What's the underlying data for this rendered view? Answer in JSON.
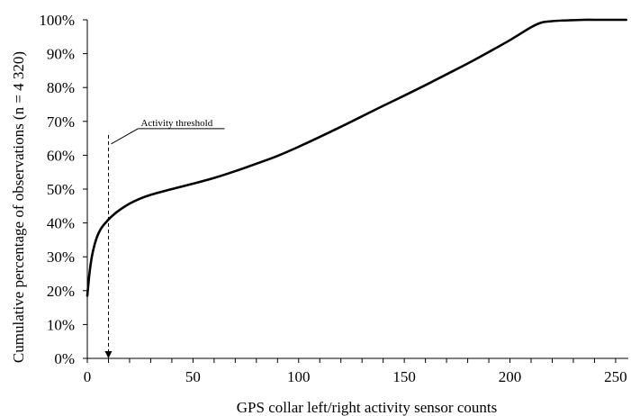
{
  "chart_data": {
    "type": "line",
    "xlabel": "GPS collar left/right activity sensor counts",
    "ylabel": "Cumulative percentage of observations (n = 4 320)",
    "xlim": [
      0,
      256
    ],
    "ylim": [
      0,
      100
    ],
    "x_ticks": [
      0,
      50,
      100,
      150,
      200,
      250
    ],
    "x_tick_labels": [
      "0",
      "50",
      "100",
      "150",
      "200",
      "250"
    ],
    "y_ticks": [
      0,
      10,
      20,
      30,
      40,
      50,
      60,
      70,
      80,
      90,
      100
    ],
    "y_tick_labels": [
      "0%",
      "10%",
      "20%",
      "30%",
      "40%",
      "50%",
      "60%",
      "70%",
      "80%",
      "90%",
      "100%"
    ],
    "grid": false,
    "legend": "none",
    "series": [
      {
        "x": [
          0,
          1,
          2,
          3,
          4,
          5,
          6,
          7,
          8,
          9,
          10,
          12,
          15,
          20,
          25,
          30,
          40,
          50,
          60,
          70,
          80,
          90,
          100,
          110,
          120,
          130,
          140,
          150,
          160,
          170,
          180,
          190,
          200,
          210,
          215,
          220,
          225,
          230,
          235,
          240,
          250,
          255
        ],
        "values": [
          18.5,
          25,
          29.5,
          32.5,
          34.8,
          36.5,
          37.8,
          38.8,
          39.6,
          40.3,
          41,
          42.2,
          43.7,
          45.7,
          47.2,
          48.3,
          50,
          51.6,
          53.3,
          55.3,
          57.5,
          59.8,
          62.5,
          65.4,
          68.4,
          71.5,
          74.6,
          77.6,
          80.7,
          83.9,
          87.1,
          90.5,
          94,
          97.8,
          99.2,
          99.6,
          99.8,
          99.9,
          100,
          100,
          100,
          100
        ],
        "color": "#000000"
      }
    ],
    "annotations": [
      {
        "text": "Activity threshold",
        "x": 10,
        "arrow_from_y": 66,
        "arrow_to_y": 0
      }
    ]
  }
}
